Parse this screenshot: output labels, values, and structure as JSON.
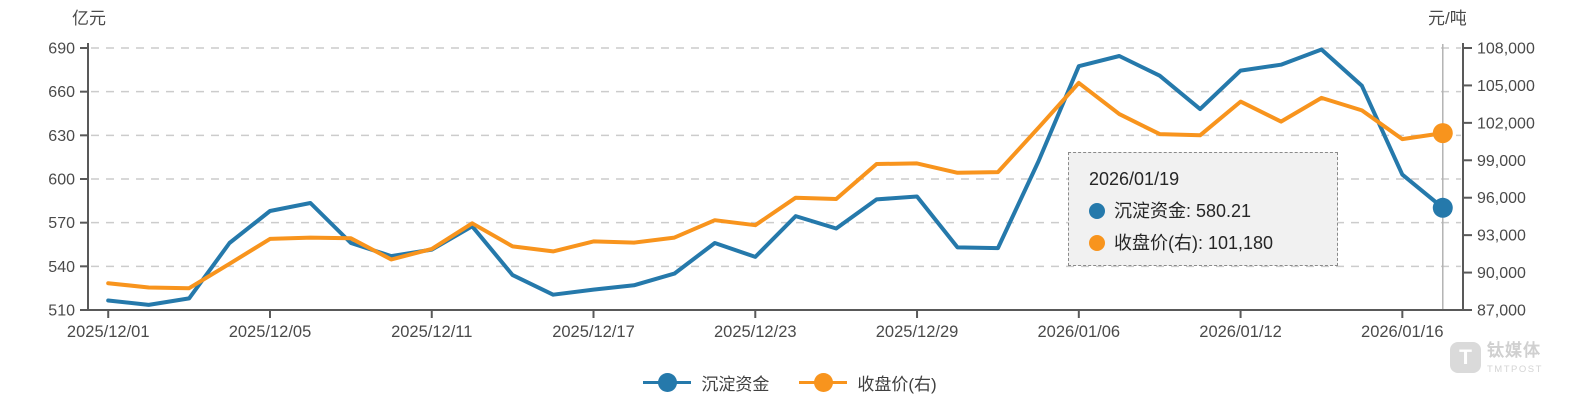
{
  "chart_data": {
    "type": "line",
    "title": "",
    "left_axis": {
      "title": "亿元",
      "min": 510,
      "max": 690,
      "ticks": [
        510,
        540,
        570,
        600,
        630,
        660,
        690
      ]
    },
    "right_axis": {
      "title": "元/吨",
      "min": 87000,
      "max": 108000,
      "ticks": [
        {
          "v": 87000,
          "label": "87,000"
        },
        {
          "v": 90000,
          "label": "90,000"
        },
        {
          "v": 93000,
          "label": "93,000"
        },
        {
          "v": 96000,
          "label": "96,000"
        },
        {
          "v": 99000,
          "label": "99,000"
        },
        {
          "v": 102000,
          "label": "102,000"
        },
        {
          "v": 105000,
          "label": "105,000"
        },
        {
          "v": 108000,
          "label": "108,000"
        }
      ]
    },
    "x": [
      "2025/12/01",
      "2025/12/02",
      "2025/12/03",
      "2025/12/04",
      "2025/12/05",
      "2025/12/08",
      "2025/12/09",
      "2025/12/10",
      "2025/12/11",
      "2025/12/12",
      "2025/12/15",
      "2025/12/16",
      "2025/12/17",
      "2025/12/18",
      "2025/12/19",
      "2025/12/22",
      "2025/12/23",
      "2025/12/24",
      "2025/12/25",
      "2025/12/26",
      "2025/12/29",
      "2025/12/30",
      "2025/12/31",
      "2026/01/05",
      "2026/01/06",
      "2026/01/07",
      "2026/01/08",
      "2026/01/09",
      "2026/01/12",
      "2026/01/13",
      "2026/01/14",
      "2026/01/15",
      "2026/01/16",
      "2026/01/19"
    ],
    "x_tick_indices": [
      0,
      4,
      8,
      12,
      16,
      20,
      24,
      28,
      32
    ],
    "x_tick_labels": [
      "2025/12/01",
      "2025/12/05",
      "2025/12/11",
      "2025/12/17",
      "2025/12/23",
      "2025/12/29",
      "2026/01/06",
      "2026/01/12",
      "2026/01/16"
    ],
    "grid": "dashed horizontal lines at left-axis ticks",
    "legend_position": "bottom-center",
    "series": [
      {
        "name": "沉淀资金",
        "axis": "left",
        "color": "#2579ab",
        "values": [
          516.5,
          513.5,
          518,
          556,
          578,
          583.5,
          556,
          547,
          551.5,
          567.5,
          534,
          520.5,
          524,
          527,
          535,
          556,
          546.5,
          574.5,
          566,
          586,
          588,
          553,
          552.5,
          612,
          677.5,
          684.5,
          671,
          648,
          674.5,
          678.5,
          689,
          664,
          603,
          580.21
        ]
      },
      {
        "name": "收盘价(右)",
        "axis": "right",
        "color": "#f8941d",
        "values": [
          89150,
          88800,
          88750,
          90700,
          92700,
          92800,
          92750,
          91050,
          91900,
          93950,
          92100,
          91700,
          92500,
          92400,
          92800,
          94200,
          93800,
          96000,
          95900,
          98700,
          98750,
          98000,
          98050,
          101600,
          105200,
          102700,
          101100,
          101000,
          103700,
          102100,
          104000,
          103000,
          100700,
          101180
        ]
      }
    ],
    "highlight": {
      "index": 33,
      "date": "2026/01/19",
      "crosshair_color": "#b3b3b3",
      "marker_radius": 10
    }
  },
  "colors": {
    "axis_line": "#595959",
    "tick_text": "#4a4a4a",
    "gridline": "#cccccc",
    "tooltip_bg": "#f1f1f1",
    "tooltip_border": "#8a8a8a"
  },
  "tooltip": {
    "date": "2026/01/19",
    "rows": [
      {
        "text": "沉淀资金: 580.21",
        "series": 0
      },
      {
        "text": "收盘价(右): 101,180",
        "series": 1
      }
    ]
  },
  "legend": {
    "items": [
      {
        "label": "沉淀资金"
      },
      {
        "label": "收盘价(右)"
      }
    ]
  },
  "watermark": {
    "logo_letter": "T",
    "name_cn": "钛媒体",
    "name_en": "TMTPOST"
  }
}
